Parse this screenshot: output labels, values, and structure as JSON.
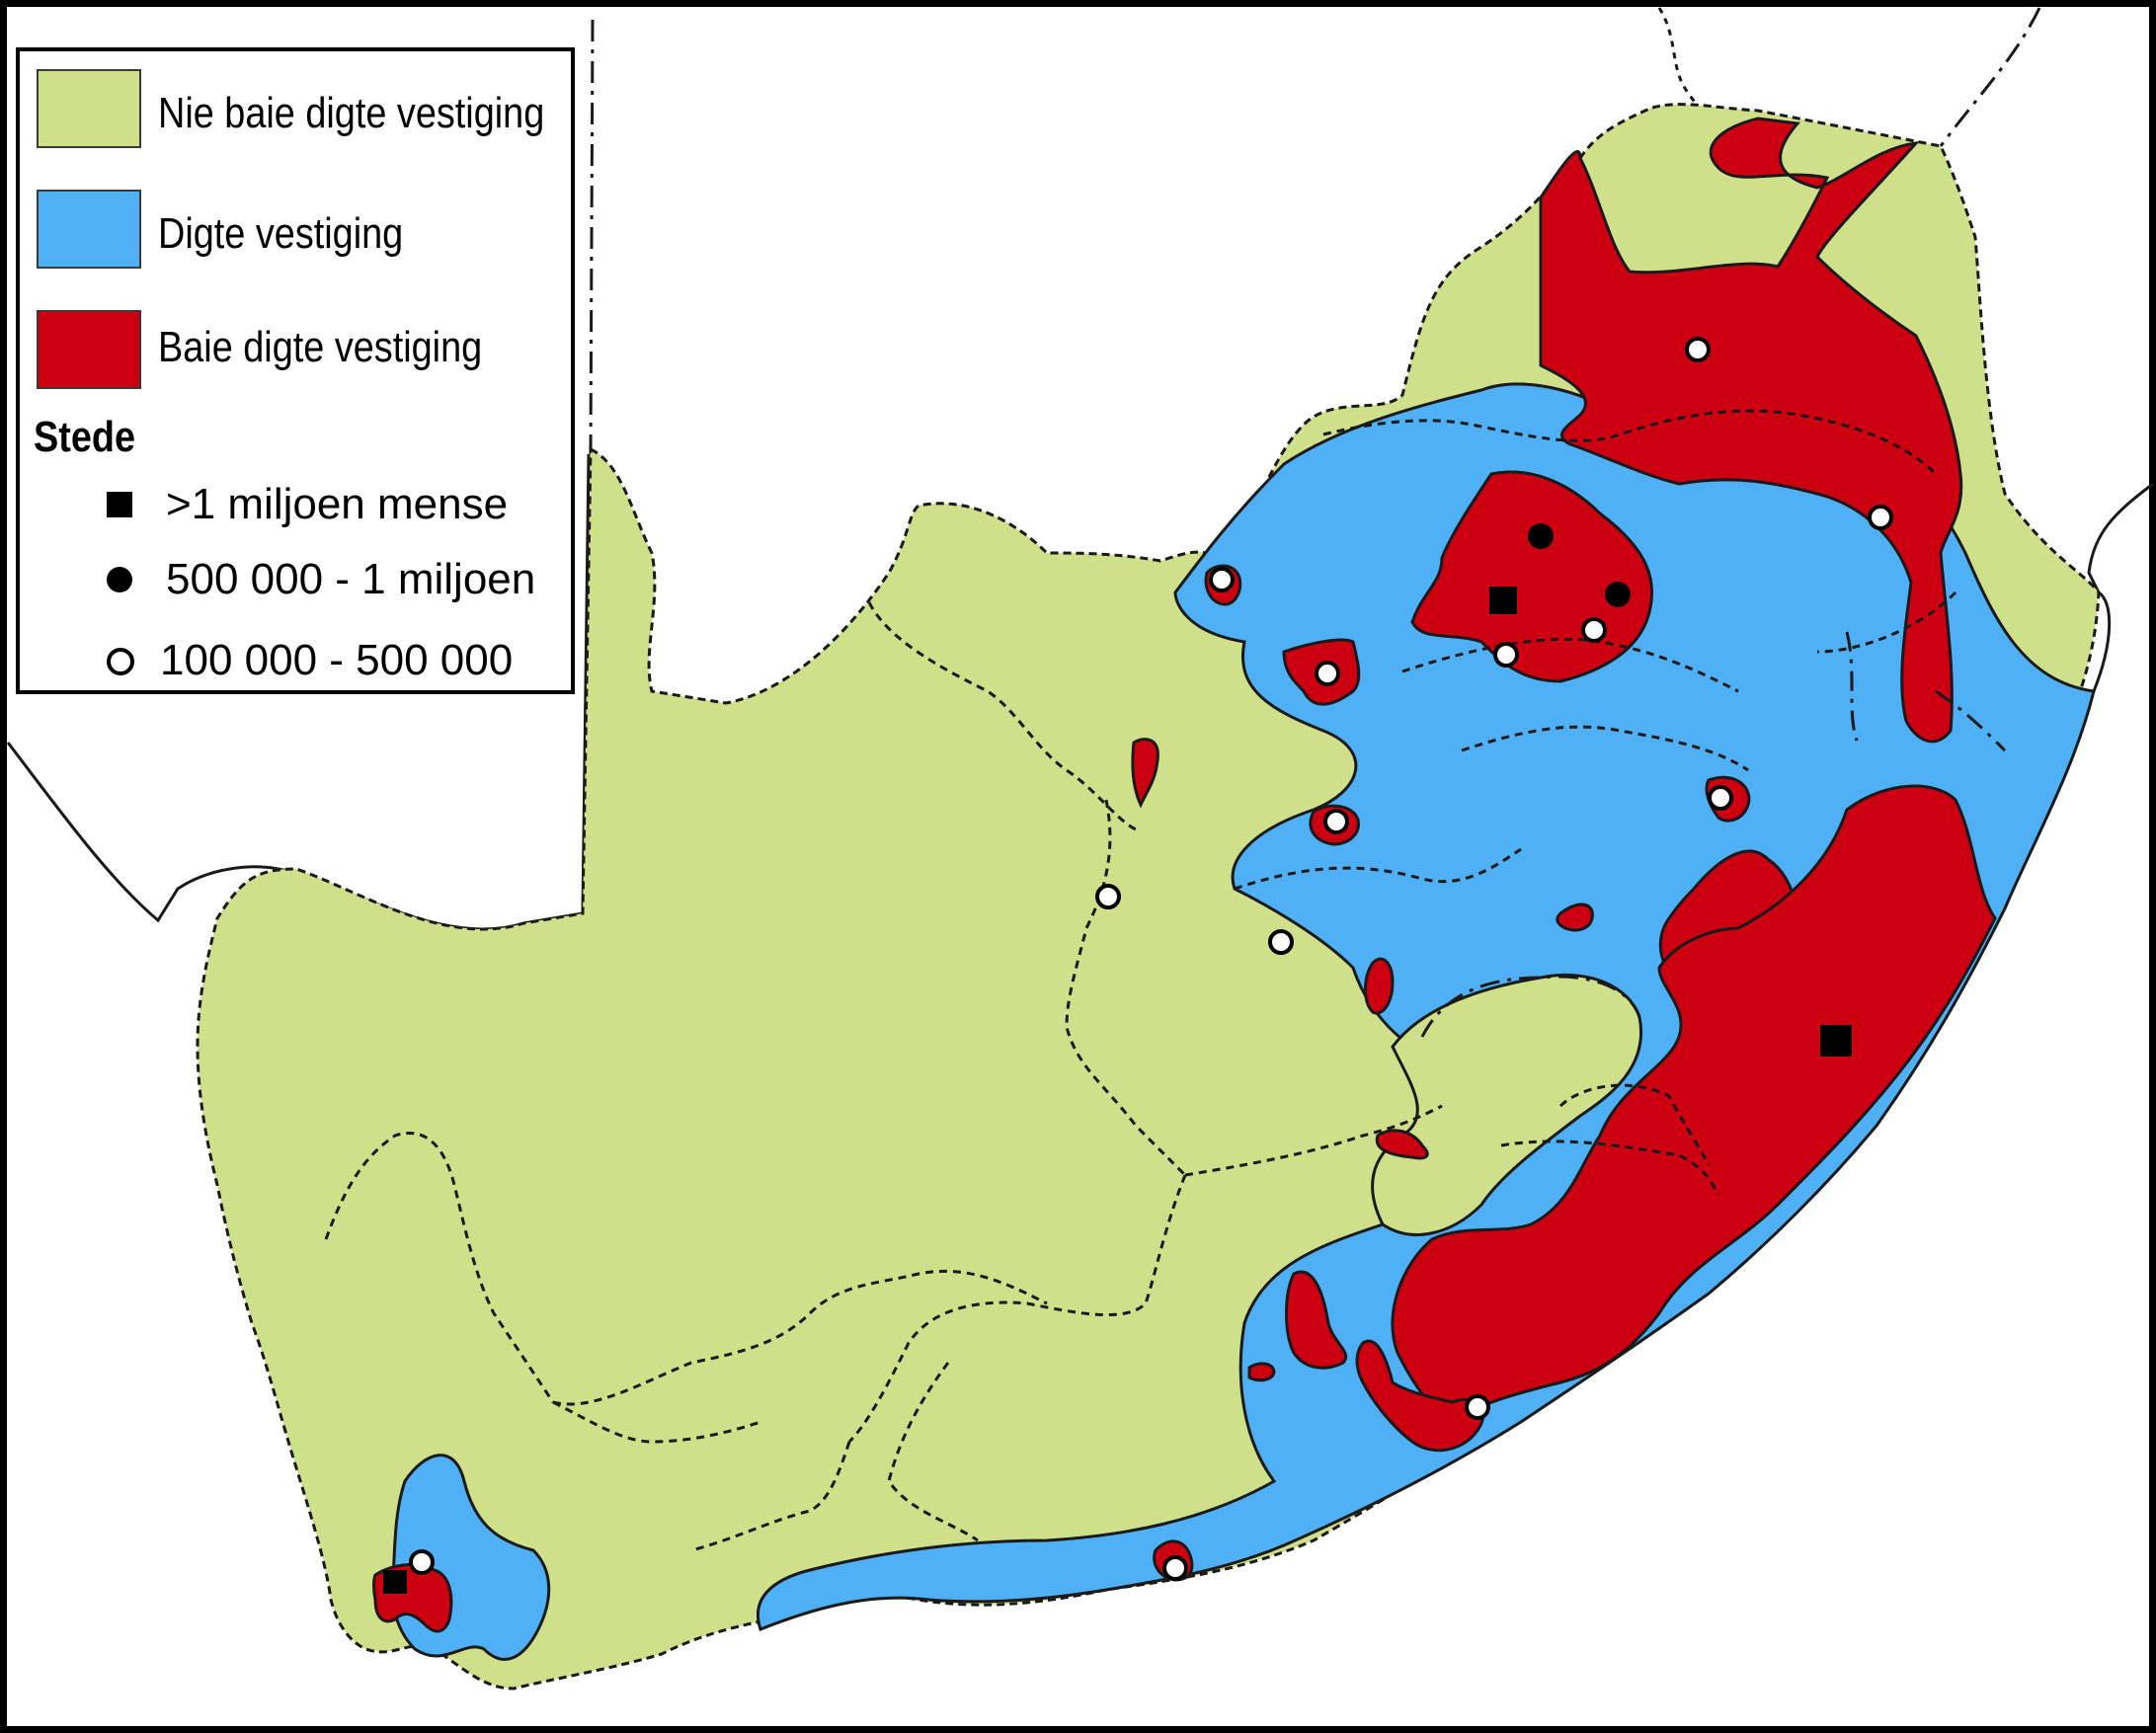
{
  "colors": {
    "sparse": "#cfe08a",
    "dense": "#4fb0f5",
    "very_dense": "#cc0011",
    "border": "#1a1a1a"
  },
  "legend": {
    "items": [
      {
        "key": "sparse",
        "label": "Nie baie digte vestiging"
      },
      {
        "key": "dense",
        "label": "Digte vestiging"
      },
      {
        "key": "very_dense",
        "label": "Baie digte vestiging"
      }
    ],
    "cities_heading": "Stede",
    "cities": [
      {
        "symbol": "filled-square-icon",
        "label": ">1 miljoen mense"
      },
      {
        "symbol": "filled-circle-icon",
        "label": "500 000 - 1 miljoen"
      },
      {
        "symbol": "open-circle-icon",
        "label": "100 000 - 500 000"
      }
    ]
  }
}
